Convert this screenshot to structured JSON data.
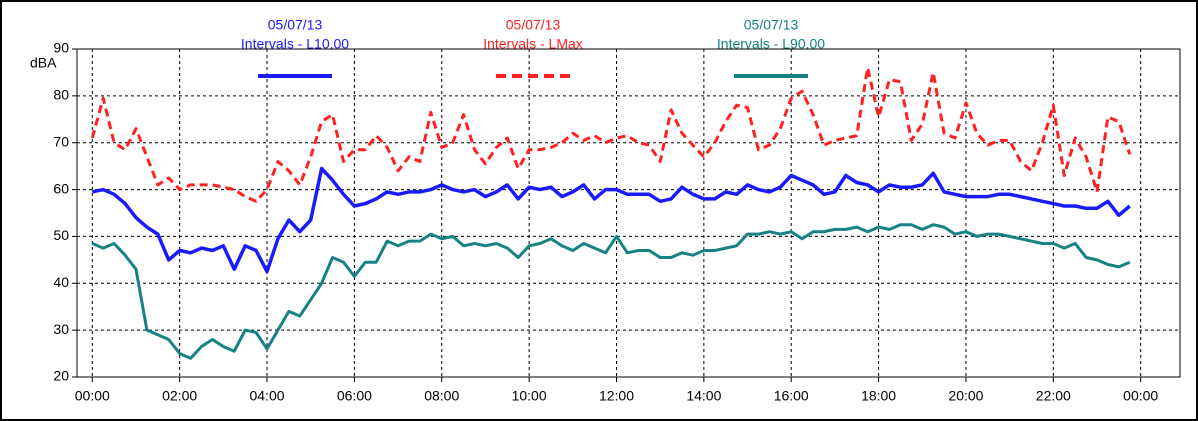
{
  "chart_data": {
    "type": "line",
    "y_label": "dBA",
    "x": [
      0,
      0.25,
      0.5,
      0.75,
      1,
      1.25,
      1.5,
      1.75,
      2,
      2.25,
      2.5,
      2.75,
      3,
      3.25,
      3.5,
      3.75,
      4,
      4.25,
      4.5,
      4.75,
      5,
      5.25,
      5.5,
      5.75,
      6,
      6.25,
      6.5,
      6.75,
      7,
      7.25,
      7.5,
      7.75,
      8,
      8.25,
      8.5,
      8.75,
      9,
      9.25,
      9.5,
      9.75,
      10,
      10.25,
      10.5,
      10.75,
      11,
      11.25,
      11.5,
      11.75,
      12,
      12.25,
      12.5,
      12.75,
      13,
      13.25,
      13.5,
      13.75,
      14,
      14.25,
      14.5,
      14.75,
      15,
      15.25,
      15.5,
      15.75,
      16,
      16.25,
      16.5,
      16.75,
      17,
      17.25,
      17.5,
      17.75,
      18,
      18.25,
      18.5,
      18.75,
      19,
      19.25,
      19.5,
      19.75,
      20,
      20.25,
      20.5,
      20.75,
      21,
      21.25,
      21.5,
      21.75,
      22,
      22.25,
      22.5,
      22.75,
      23,
      23.25,
      23.5,
      23.75
    ],
    "series": [
      {
        "date": "05/07/13",
        "name": "Intervals - L10.00",
        "color": "#1a1aff",
        "dash": false,
        "values": [
          59.5,
          60,
          59,
          57,
          54,
          52,
          50.5,
          45,
          47,
          46.5,
          47.5,
          47,
          48,
          43,
          48,
          47,
          42.5,
          49.5,
          53.5,
          51,
          53.5,
          64.5,
          62,
          59,
          56.5,
          57,
          58,
          59.5,
          59,
          59.5,
          59.5,
          60,
          61,
          60,
          59.5,
          60,
          58.5,
          59.5,
          61,
          58,
          60.5,
          60,
          60.5,
          58.5,
          59.5,
          61,
          58,
          60,
          60,
          59,
          59,
          59,
          57.5,
          58,
          60.5,
          59,
          58,
          58,
          59.5,
          59,
          61,
          60,
          59.5,
          60.5,
          63,
          62,
          61,
          59,
          59.5,
          63,
          61.5,
          61,
          59.5,
          61,
          60.5,
          60.5,
          61,
          63.5,
          59.5,
          59,
          58.5,
          58.5,
          58.5,
          59,
          59,
          58.5,
          58,
          57.5,
          57,
          56.5,
          56.5,
          56,
          56,
          57.5,
          54.5,
          56.5
        ]
      },
      {
        "date": "05/07/13",
        "name": "Intervals - LMax",
        "color": "#ff2020",
        "dash": true,
        "values": [
          71,
          79.5,
          70,
          68.5,
          73,
          67,
          61,
          62.5,
          60,
          61,
          61,
          61,
          60.5,
          60,
          58.5,
          57.5,
          60,
          66,
          64,
          61,
          67,
          74.5,
          76,
          66,
          68.5,
          68.5,
          71.5,
          69,
          64,
          67,
          66,
          76.5,
          69,
          70,
          76,
          68.5,
          65.5,
          69,
          71,
          64.5,
          68.5,
          68.5,
          69,
          70,
          72,
          70.5,
          71.5,
          70,
          71,
          71.5,
          70,
          69.5,
          66,
          77,
          72,
          69.5,
          67,
          70,
          74.5,
          78,
          77.5,
          68.5,
          69.5,
          73,
          79.5,
          81,
          76,
          69.5,
          70.5,
          71,
          71.5,
          86,
          75.5,
          83.5,
          83,
          70.5,
          74,
          85,
          72,
          71,
          78.5,
          72,
          69.5,
          70.5,
          70.5,
          66,
          64,
          70,
          78,
          63,
          71,
          67,
          59.5,
          75.5,
          74.5,
          67.5
        ]
      },
      {
        "date": "05/07/13",
        "name": "Intervals - L90.00",
        "color": "#168282",
        "dash": false,
        "values": [
          48.5,
          47.5,
          48.5,
          46,
          43,
          30,
          29,
          28,
          25,
          24,
          26.5,
          28,
          26.5,
          25.5,
          30,
          29.5,
          26,
          30,
          34,
          33,
          36.5,
          40,
          45.5,
          44.5,
          41.5,
          44.5,
          44.5,
          49,
          48,
          49,
          49,
          50.5,
          49.5,
          50,
          48,
          48.5,
          48,
          48.5,
          47.5,
          45.5,
          48,
          48.5,
          49.5,
          48,
          47,
          48.5,
          47.5,
          46.5,
          50,
          46.5,
          47,
          47,
          45.5,
          45.5,
          46.5,
          46,
          47,
          47,
          47.5,
          48,
          50.5,
          50.5,
          51,
          50.5,
          51,
          49.5,
          51,
          51,
          51.5,
          51.5,
          52,
          51,
          52,
          51.5,
          52.5,
          52.5,
          51.5,
          52.5,
          52,
          50.5,
          51,
          50,
          50.5,
          50.5,
          50,
          49.5,
          49,
          48.5,
          48.5,
          47.5,
          48.5,
          45.5,
          45,
          44,
          43.5,
          44.5
        ]
      }
    ],
    "xlim": [
      -0.35,
      24.9
    ],
    "xticks": [
      {
        "value": 0,
        "label": "00:00"
      },
      {
        "value": 2,
        "label": "02:00"
      },
      {
        "value": 4,
        "label": "04:00"
      },
      {
        "value": 6,
        "label": "06:00"
      },
      {
        "value": 8,
        "label": "08:00"
      },
      {
        "value": 10,
        "label": "10:00"
      },
      {
        "value": 12,
        "label": "12:00"
      },
      {
        "value": 14,
        "label": "14:00"
      },
      {
        "value": 16,
        "label": "16:00"
      },
      {
        "value": 18,
        "label": "18:00"
      },
      {
        "value": 20,
        "label": "20:00"
      },
      {
        "value": 22,
        "label": "22:00"
      },
      {
        "value": 24,
        "label": "00:00"
      }
    ],
    "ylim": [
      20,
      90
    ],
    "yticks": [
      20,
      30,
      40,
      50,
      60,
      70,
      80,
      90
    ],
    "grid": true,
    "legend": "top"
  }
}
